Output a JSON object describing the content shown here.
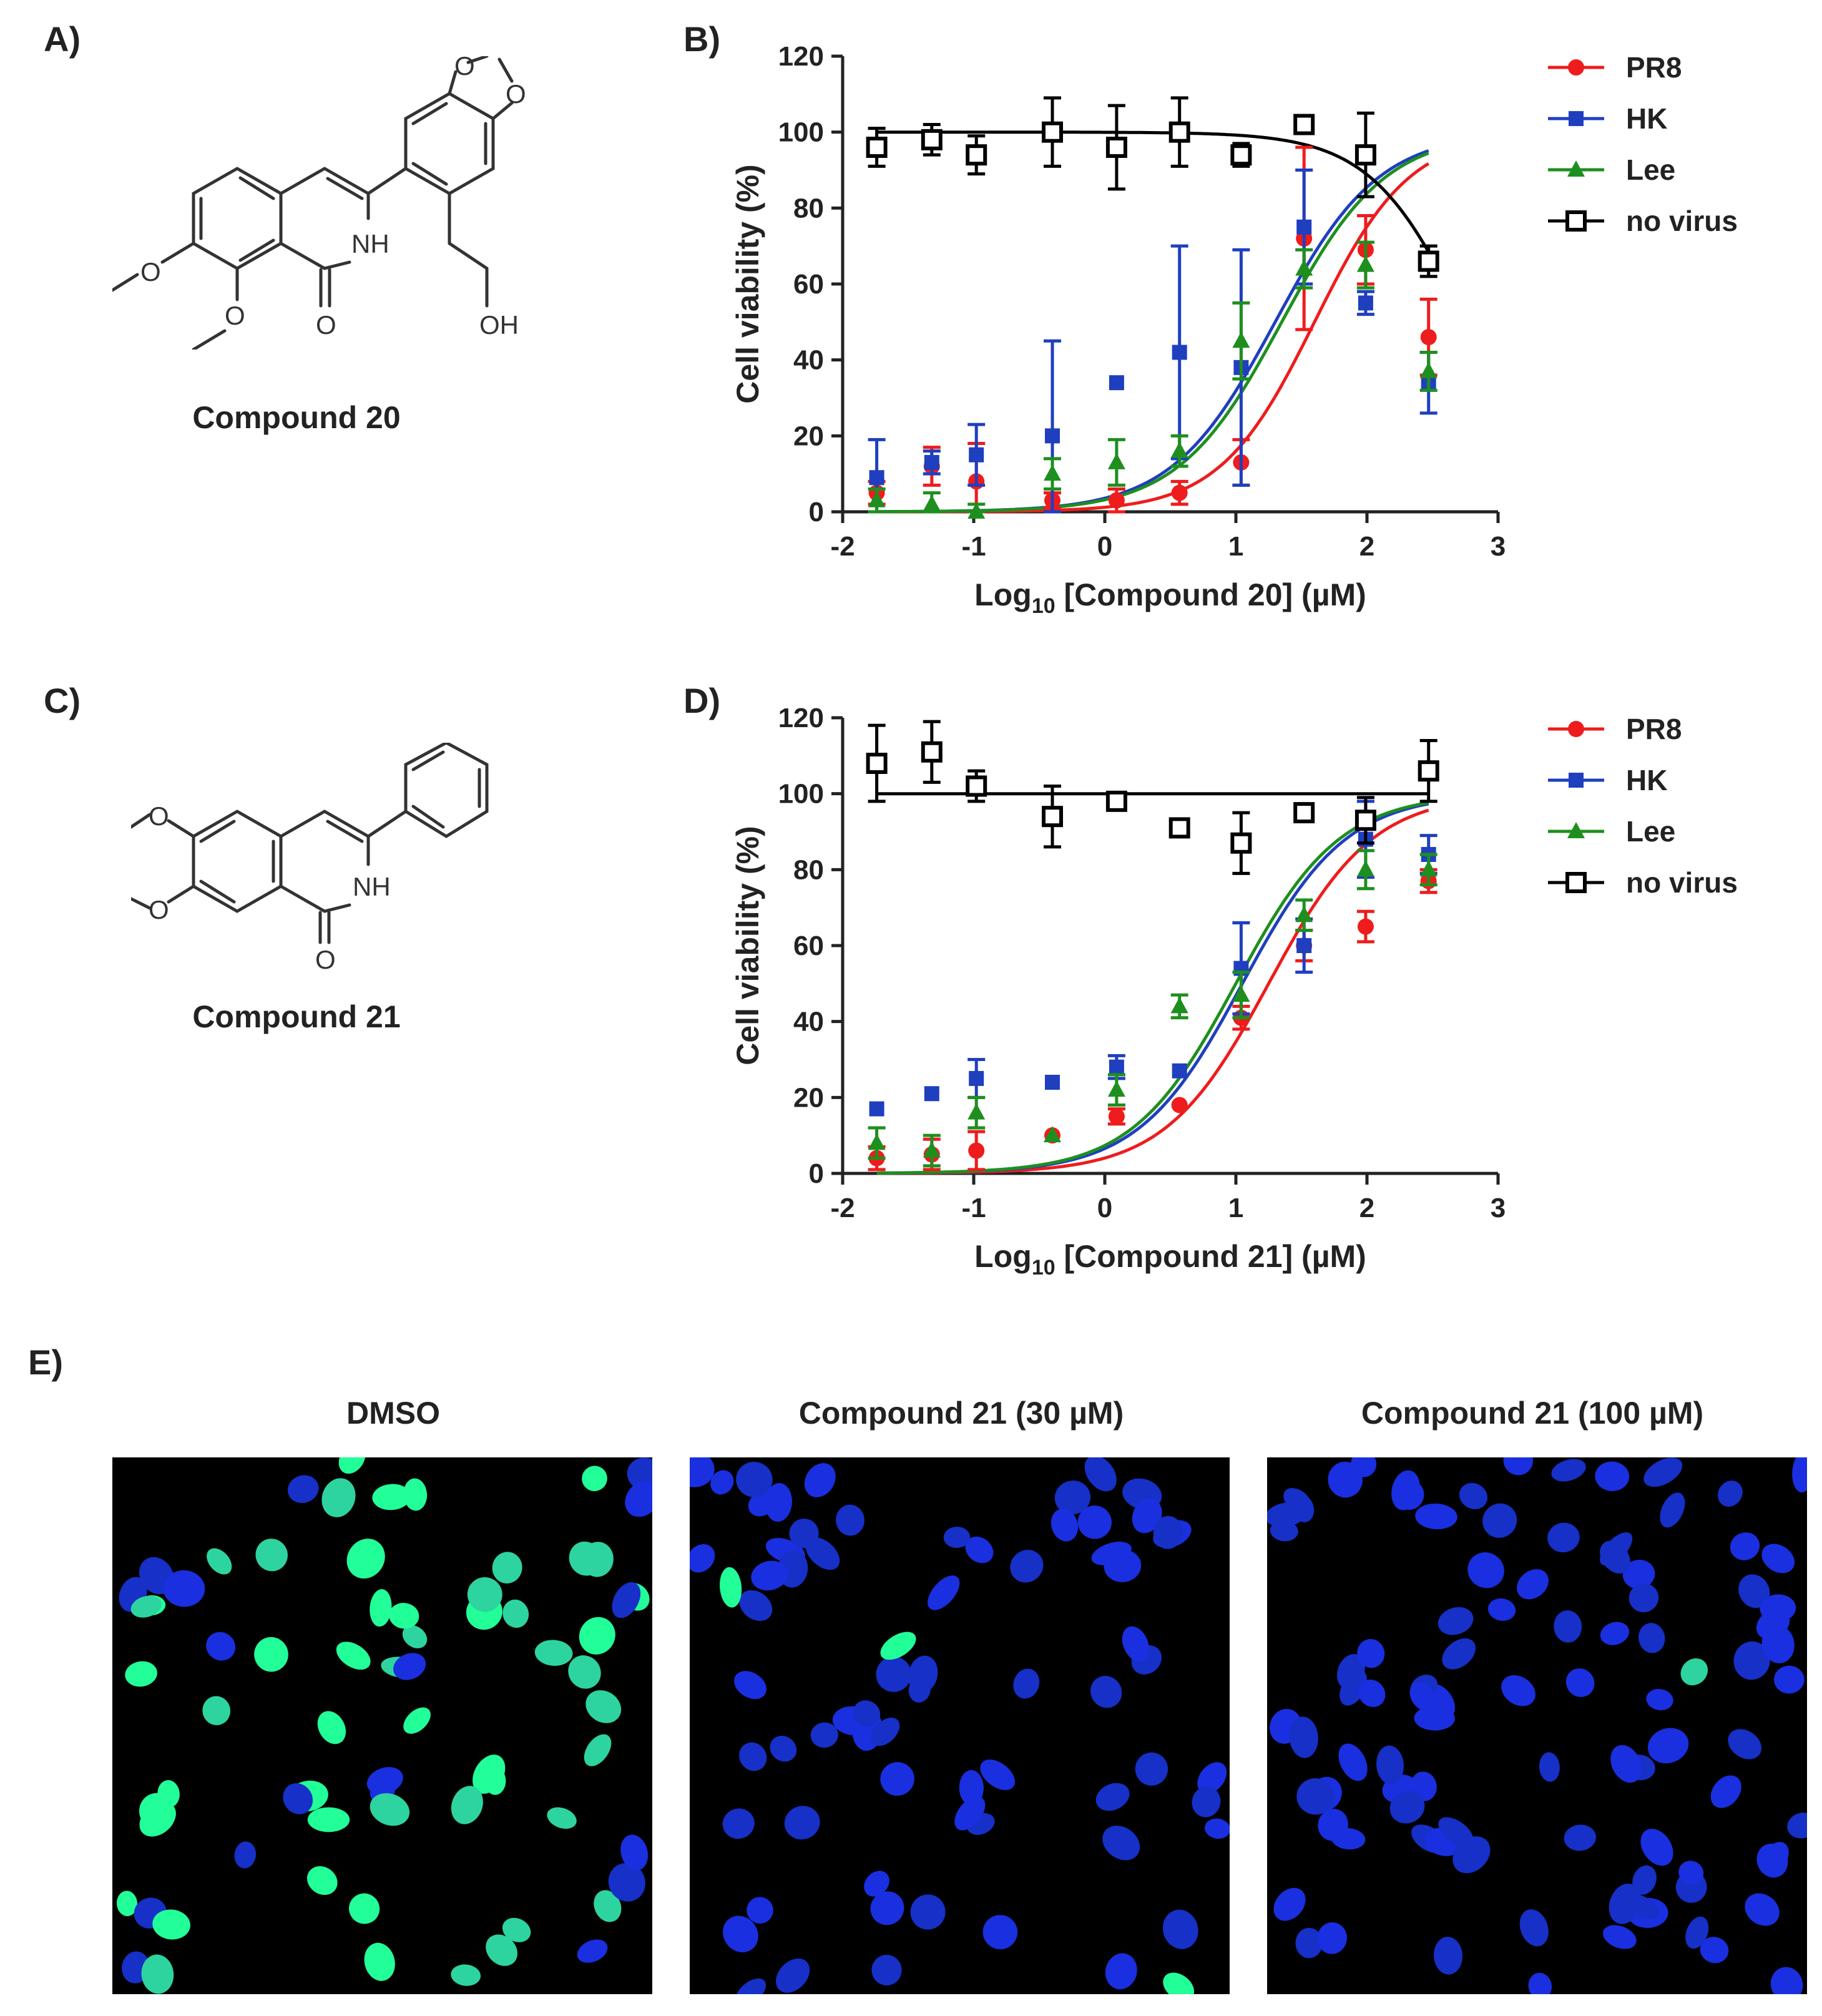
{
  "panels": {
    "a": "A)",
    "b": "B)",
    "c": "C)",
    "d": "D)",
    "e": "E)"
  },
  "compounds": {
    "c20": {
      "name": "Compound 20",
      "atoms": {
        "nh": "NH",
        "o": "O",
        "oh": "OH"
      }
    },
    "c21": {
      "name": "Compound 21",
      "atoms": {
        "nh": "NH",
        "o": "O"
      }
    }
  },
  "chart_data": [
    {
      "type": "scatter",
      "panel": "B)",
      "title": "",
      "xlabel_prefix": "Log",
      "xlabel_sub": "10",
      "xlabel_rest": " [Compound 20] (µM)",
      "ylabel": "Cell viability  (%)",
      "xlim": [
        -2,
        3
      ],
      "ylim": [
        0,
        120
      ],
      "xticks": [
        "-2",
        "-1",
        "0",
        "1",
        "2",
        "3"
      ],
      "yticks": [
        "0",
        "20",
        "40",
        "60",
        "80",
        "100",
        "120"
      ],
      "grid": false,
      "legend_position": "top-right",
      "legend": [
        "PR8",
        "HK",
        "Lee",
        "no virus"
      ],
      "series": [
        {
          "name": "PR8",
          "color": "#ee1c1c",
          "marker": "circle",
          "x": [
            -1.74,
            -1.32,
            -0.98,
            -0.4,
            0.09,
            0.57,
            1.04,
            1.52,
            1.99,
            2.47
          ],
          "y": [
            5,
            12,
            8,
            3,
            3,
            5,
            13,
            72,
            69,
            46
          ],
          "err": [
            3,
            5,
            10,
            2,
            3,
            3,
            6,
            24,
            9,
            10
          ],
          "fit": {
            "bottom": 0,
            "top": 100,
            "logec50": 1.6,
            "hill": 1.2
          }
        },
        {
          "name": "HK",
          "color": "#1f3fbf",
          "marker": "square",
          "x": [
            -1.74,
            -1.32,
            -0.98,
            -0.4,
            0.09,
            0.57,
            1.04,
            1.52,
            1.99,
            2.47
          ],
          "y": [
            9,
            13,
            15,
            20,
            34,
            42,
            38,
            75,
            55,
            34
          ],
          "err": [
            10,
            3,
            8,
            25,
            0,
            28,
            31,
            15,
            3,
            8
          ],
          "fit": {
            "bottom": 0,
            "top": 100,
            "logec50": 1.3,
            "hill": 1.1
          }
        },
        {
          "name": "Lee",
          "color": "#1e8f1e",
          "marker": "triangle",
          "x": [
            -1.74,
            -1.32,
            -0.98,
            -0.4,
            0.09,
            0.57,
            1.04,
            1.52,
            1.99,
            2.47
          ],
          "y": [
            3,
            2,
            0,
            10,
            13,
            16,
            45,
            64,
            65,
            37
          ],
          "err": [
            3,
            3,
            2,
            4,
            6,
            4,
            10,
            5,
            6,
            5
          ],
          "fit": {
            "bottom": 0,
            "top": 100,
            "logec50": 1.35,
            "hill": 1.1
          }
        },
        {
          "name": "no virus",
          "color": "#000000",
          "marker": "open-square",
          "x": [
            -1.74,
            -1.32,
            -0.98,
            -0.4,
            0.09,
            0.57,
            1.04,
            1.52,
            1.99,
            2.47
          ],
          "y": [
            96,
            98,
            94,
            100,
            96,
            100,
            94,
            102,
            94,
            66
          ],
          "err": [
            5,
            4,
            5,
            9,
            11,
            9,
            3,
            0,
            11,
            4
          ],
          "fit": {
            "bottom": 0,
            "top": 100,
            "logec50": 3.0,
            "hill": 1.4
          }
        }
      ]
    },
    {
      "type": "scatter",
      "panel": "D)",
      "title": "",
      "xlabel_prefix": "Log",
      "xlabel_sub": "10",
      "xlabel_rest": " [Compound 21] (µM)",
      "ylabel": "Cell viability  (%)",
      "xlim": [
        -2,
        3
      ],
      "ylim": [
        0,
        120
      ],
      "xticks": [
        "-2",
        "-1",
        "0",
        "1",
        "2",
        "3"
      ],
      "yticks": [
        "0",
        "20",
        "40",
        "60",
        "80",
        "100",
        "120"
      ],
      "grid": false,
      "legend_position": "top-right",
      "legend": [
        "PR8",
        "HK",
        "Lee",
        "no virus"
      ],
      "series": [
        {
          "name": "PR8",
          "color": "#ee1c1c",
          "marker": "circle",
          "x": [
            -1.74,
            -1.32,
            -0.98,
            -0.4,
            0.09,
            0.57,
            1.04,
            1.52,
            1.99,
            2.47
          ],
          "y": [
            4,
            5,
            6,
            10,
            15,
            18,
            41,
            60,
            65,
            77
          ],
          "err": [
            3,
            4,
            5,
            0,
            2,
            0,
            3,
            4,
            4,
            3
          ],
          "fit": {
            "bottom": 0,
            "top": 100,
            "logec50": 1.25,
            "hill": 1.1
          }
        },
        {
          "name": "HK",
          "color": "#1f3fbf",
          "marker": "square",
          "x": [
            -1.74,
            -1.32,
            -0.98,
            -0.4,
            0.09,
            0.57,
            1.04,
            1.52,
            1.99,
            2.47
          ],
          "y": [
            17,
            21,
            25,
            24,
            28,
            27,
            54,
            60,
            88,
            84
          ],
          "err": [
            0,
            0,
            5,
            0,
            3,
            0,
            12,
            7,
            10,
            5
          ],
          "fit": {
            "bottom": 0,
            "top": 100,
            "logec50": 1.05,
            "hill": 1.1
          }
        },
        {
          "name": "Lee",
          "color": "#1e8f1e",
          "marker": "triangle",
          "x": [
            -1.74,
            -1.32,
            -0.98,
            -0.4,
            0.09,
            0.57,
            1.04,
            1.52,
            1.99,
            2.47
          ],
          "y": [
            8,
            6,
            16,
            10,
            22,
            44,
            47,
            68,
            80,
            80
          ],
          "err": [
            4,
            4,
            4,
            0,
            4,
            3,
            6,
            4,
            5,
            4
          ],
          "fit": {
            "bottom": 0,
            "top": 100,
            "logec50": 1.0,
            "hill": 1.1
          }
        },
        {
          "name": "no virus",
          "color": "#000000",
          "marker": "open-square",
          "x": [
            -1.74,
            -1.32,
            -0.98,
            -0.4,
            0.09,
            0.57,
            1.04,
            1.52,
            1.99,
            2.47
          ],
          "y": [
            108,
            111,
            102,
            94,
            98,
            91,
            87,
            95,
            93,
            106
          ],
          "err": [
            10,
            8,
            4,
            8,
            2,
            0,
            8,
            0,
            6,
            8
          ],
          "fit": {
            "flat": 100
          }
        }
      ]
    }
  ],
  "microscopy": {
    "images": [
      {
        "title": "DMSO",
        "green_fraction": 0.7
      },
      {
        "title": "Compound 21 (30 µM)",
        "green_fraction": 0.05
      },
      {
        "title": "Compound 21 (100 µM)",
        "green_fraction": 0.02
      }
    ],
    "colors": {
      "background": "#000000",
      "nucleus": "#1a2fe0",
      "green": "#22ff88"
    }
  }
}
